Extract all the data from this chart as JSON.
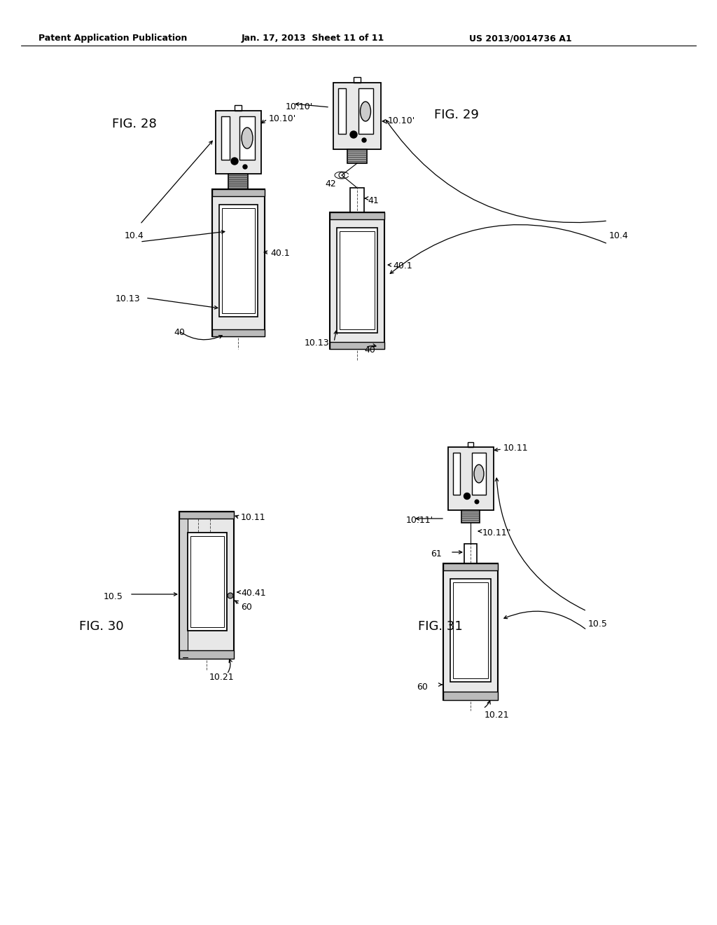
{
  "title_left": "Patent Application Publication",
  "title_mid": "Jan. 17, 2013  Sheet 11 of 11",
  "title_right": "US 2013/0014736 A1",
  "bg_color": "#ffffff",
  "line_color": "#000000"
}
